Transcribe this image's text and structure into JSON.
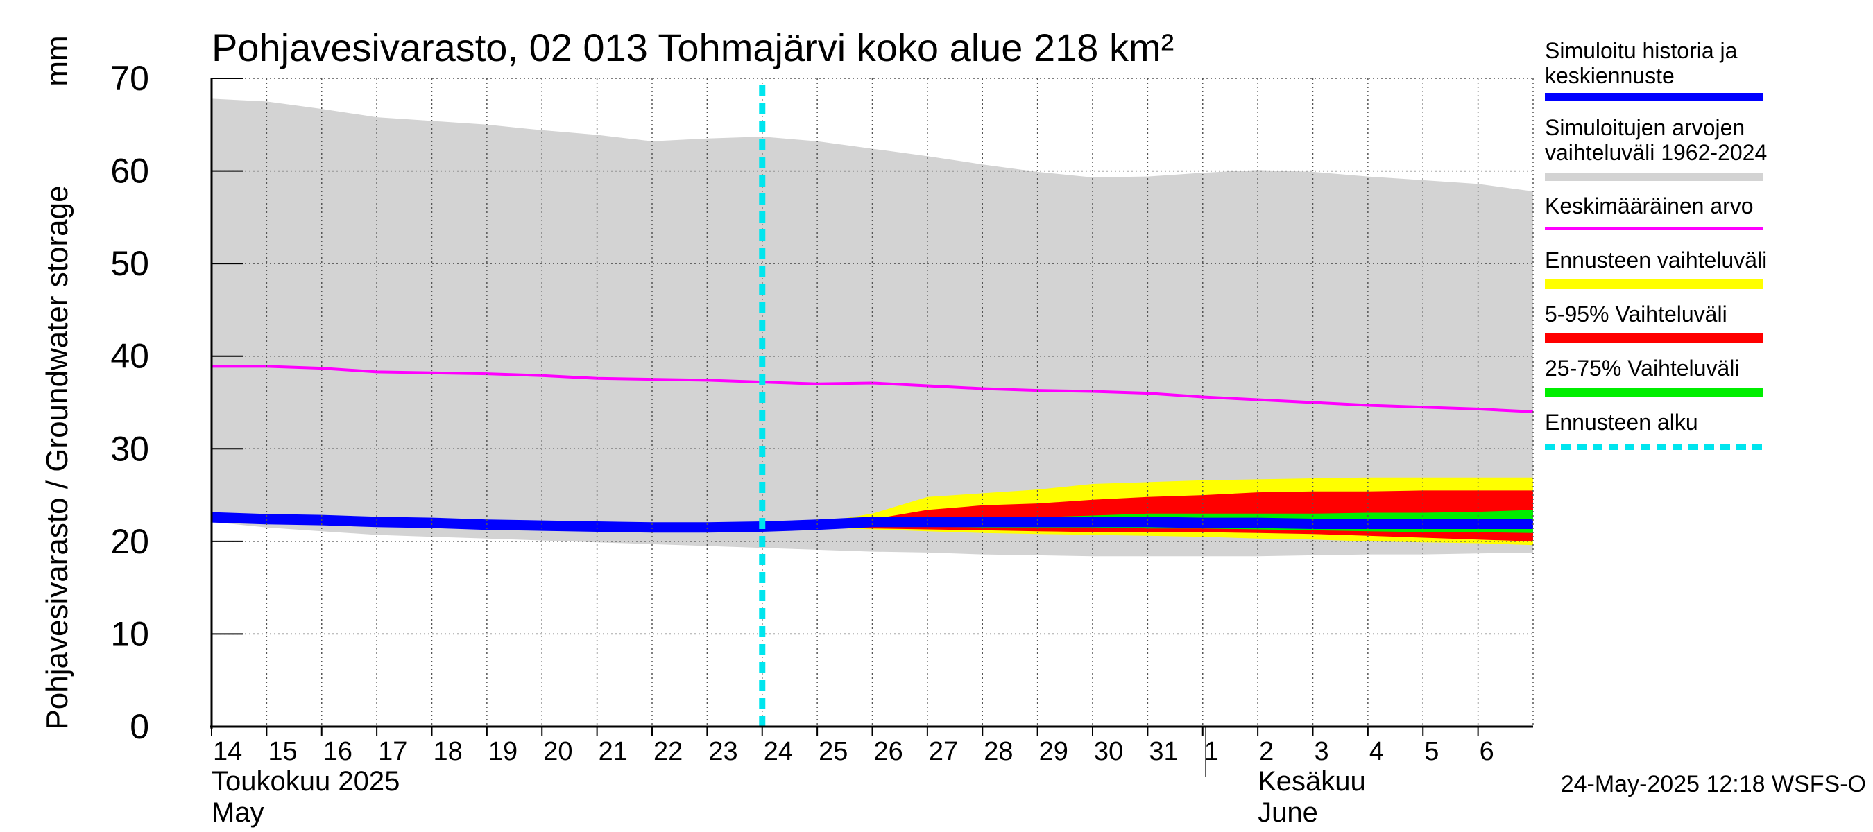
{
  "chart_data": {
    "type": "area",
    "title": "Pohjavesivarasto, 02 013 Tohmajärvi koko alue 218 km²",
    "ylabel": "Pohjavesivarasto / Groundwater storage",
    "yunit": "mm",
    "ylim": [
      0,
      70
    ],
    "yticks": [
      0,
      10,
      20,
      30,
      40,
      50,
      60,
      70
    ],
    "xlim": [
      "2025-05-14",
      "2025-06-07"
    ],
    "x_tick_labels": [
      "14",
      "15",
      "16",
      "17",
      "18",
      "19",
      "20",
      "21",
      "22",
      "23",
      "24",
      "25",
      "26",
      "27",
      "28",
      "29",
      "30",
      "31",
      "1",
      "2",
      "3",
      "4",
      "5",
      "6"
    ],
    "month_labels": [
      {
        "label_fi": "Toukokuu  2025",
        "label_en": "May",
        "date": "2025-05-14"
      },
      {
        "label_fi": "Kesäkuu",
        "label_en": "June",
        "date": "2025-06-02"
      }
    ],
    "grid": true,
    "legend_position": "right",
    "forecast_start": "2025-05-24",
    "dates": [
      "2025-05-14",
      "2025-05-15",
      "2025-05-16",
      "2025-05-17",
      "2025-05-18",
      "2025-05-19",
      "2025-05-20",
      "2025-05-21",
      "2025-05-22",
      "2025-05-23",
      "2025-05-24",
      "2025-05-25",
      "2025-05-26",
      "2025-05-27",
      "2025-05-28",
      "2025-05-29",
      "2025-05-30",
      "2025-05-31",
      "2025-06-01",
      "2025-06-02",
      "2025-06-03",
      "2025-06-04",
      "2025-06-05",
      "2025-06-06",
      "2025-06-07"
    ],
    "series": [
      {
        "name": "Simuloitujen arvojen vaihteluväli 1962-2024",
        "color": "#d3d3d3",
        "kind": "band",
        "upper": [
          67.8,
          67.5,
          66.7,
          65.8,
          65.4,
          65.0,
          64.4,
          63.9,
          63.2,
          63.5,
          63.7,
          63.2,
          62.4,
          61.6,
          60.7,
          59.9,
          59.3,
          59.4,
          59.8,
          60.1,
          59.9,
          59.4,
          59.0,
          58.6,
          57.8
        ],
        "lower": [
          22.1,
          21.5,
          21.1,
          20.7,
          20.5,
          20.3,
          20.1,
          19.9,
          19.7,
          19.5,
          19.3,
          19.1,
          18.9,
          18.8,
          18.6,
          18.5,
          18.4,
          18.4,
          18.4,
          18.4,
          18.5,
          18.6,
          18.6,
          18.7,
          18.8
        ]
      },
      {
        "name": "Ennusteen vaihteluväli",
        "color": "#ffff00",
        "kind": "band",
        "upper": [
          null,
          null,
          null,
          null,
          null,
          null,
          null,
          null,
          null,
          null,
          21.6,
          22.0,
          23.0,
          24.8,
          25.2,
          25.6,
          26.2,
          26.4,
          26.6,
          26.7,
          26.8,
          26.9,
          26.9,
          26.9,
          26.9
        ],
        "lower": [
          null,
          null,
          null,
          null,
          null,
          null,
          null,
          null,
          null,
          null,
          21.6,
          21.5,
          21.3,
          21.1,
          20.9,
          20.8,
          20.7,
          20.6,
          20.5,
          20.3,
          20.2,
          20.0,
          19.9,
          19.8,
          19.6
        ]
      },
      {
        "name": "5-95% Vaihteluväli",
        "color": "#ff0000",
        "kind": "band",
        "upper": [
          null,
          null,
          null,
          null,
          null,
          null,
          null,
          null,
          null,
          null,
          21.6,
          21.9,
          22.4,
          23.4,
          23.9,
          24.1,
          24.5,
          24.8,
          25.0,
          25.3,
          25.4,
          25.4,
          25.5,
          25.5,
          25.5
        ],
        "lower": [
          null,
          null,
          null,
          null,
          null,
          null,
          null,
          null,
          null,
          null,
          21.6,
          21.5,
          21.4,
          21.3,
          21.2,
          21.1,
          21.0,
          21.0,
          21.0,
          20.9,
          20.8,
          20.6,
          20.4,
          20.2,
          20.0
        ]
      },
      {
        "name": "25-75% Vaihteluväli",
        "color": "#00ee00",
        "kind": "band",
        "upper": [
          null,
          null,
          null,
          null,
          null,
          null,
          null,
          null,
          null,
          null,
          21.6,
          21.7,
          22.0,
          22.2,
          22.4,
          22.6,
          22.8,
          23.0,
          23.0,
          23.0,
          23.0,
          23.1,
          23.1,
          23.2,
          23.4
        ],
        "lower": [
          null,
          null,
          null,
          null,
          null,
          null,
          null,
          null,
          null,
          null,
          21.6,
          21.6,
          21.6,
          21.6,
          21.5,
          21.5,
          21.5,
          21.4,
          21.4,
          21.3,
          21.2,
          21.1,
          21.0,
          21.0,
          20.9
        ]
      },
      {
        "name": "Keskimääräinen arvo",
        "color": "#ff00ff",
        "kind": "line",
        "values": [
          38.9,
          38.9,
          38.7,
          38.3,
          38.2,
          38.1,
          37.9,
          37.6,
          37.5,
          37.4,
          37.2,
          37.0,
          37.1,
          36.8,
          36.5,
          36.3,
          36.2,
          36.0,
          35.6,
          35.3,
          35.0,
          34.7,
          34.5,
          34.3,
          34.0
        ]
      },
      {
        "name": "Simuloitu historia ja keskiennuste",
        "color": "#0000ff",
        "kind": "line",
        "values": [
          22.6,
          22.4,
          22.3,
          22.1,
          22.0,
          21.8,
          21.7,
          21.6,
          21.5,
          21.5,
          21.6,
          21.8,
          22.1,
          22.1,
          22.1,
          22.1,
          22.1,
          22.1,
          22.0,
          22.0,
          21.9,
          21.9,
          21.9,
          21.9,
          21.9
        ]
      }
    ],
    "legend": [
      {
        "text": "Simuloitu historia ja keskiennuste",
        "color": "#0000ff",
        "style": "solid"
      },
      {
        "text": "Simuloitujen arvojen vaihteluväli 1962-2024",
        "color": "#d3d3d3",
        "style": "solid"
      },
      {
        "text": "Keskimääräinen arvo",
        "color": "#ff00ff",
        "style": "thin"
      },
      {
        "text": "Ennusteen vaihteluväli",
        "color": "#ffff00",
        "style": "solid"
      },
      {
        "text": "5-95% Vaihteluväli",
        "color": "#ff0000",
        "style": "solid"
      },
      {
        "text": "25-75% Vaihteluväli",
        "color": "#00ee00",
        "style": "solid"
      },
      {
        "text": "Ennusteen alku",
        "color": "#00e5ee",
        "style": "dashed"
      }
    ],
    "footer": "24-May-2025 12:18 WSFS-O"
  }
}
